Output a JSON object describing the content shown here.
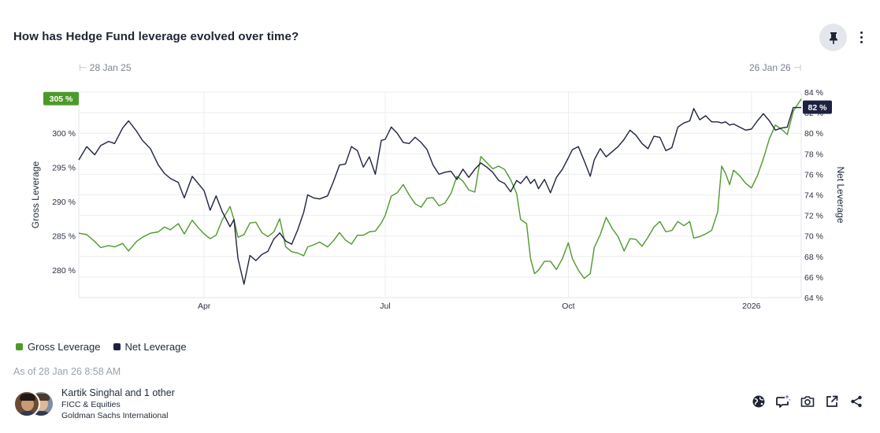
{
  "header": {
    "title": "How has Hedge Fund leverage evolved over time?",
    "pin_icon": "pin-icon",
    "more_icon": "more-vertical-icon"
  },
  "range": {
    "start": "28 Jan 25",
    "end": "26 Jan 26"
  },
  "legend": [
    {
      "label": "Gross Leverage",
      "color": "#4d9a2a"
    },
    {
      "label": "Net Leverage",
      "color": "#1e2240"
    }
  ],
  "as_of": "As of 28 Jan 26 8:58 AM",
  "authors": {
    "name": "Kartik Singhal and 1 other",
    "desk": "FICC & Equities",
    "entity": "Goldman Sachs International"
  },
  "footer_icons": [
    "globe-icon",
    "ai-comment-icon",
    "camera-icon",
    "open-external-icon",
    "share-icon"
  ],
  "chart_data": {
    "type": "line",
    "title": "How has Hedge Fund leverage evolved over time?",
    "x_range": [
      "2025-01-28",
      "2026-01-26"
    ],
    "x_ticks": [
      {
        "date": "2025-04-01",
        "label": "Apr"
      },
      {
        "date": "2025-07-01",
        "label": "Jul"
      },
      {
        "date": "2025-10-01",
        "label": "Oct"
      },
      {
        "date": "2026-01-01",
        "label": "2026"
      }
    ],
    "y_left": {
      "label": "Gross Leverage",
      "min": 276,
      "max": 306,
      "ticks": [
        280,
        285,
        290,
        295,
        300
      ],
      "tick_labels": [
        "280 %",
        "285 %",
        "290 %",
        "295 %",
        "300 %"
      ]
    },
    "y_right": {
      "label": "Net Leverage",
      "min": 64,
      "max": 84,
      "ticks": [
        64,
        66,
        68,
        70,
        72,
        74,
        76,
        78,
        80,
        82,
        84
      ],
      "tick_labels": [
        "64 %",
        "66 %",
        "68 %",
        "70 %",
        "72 %",
        "74 %",
        "76 %",
        "78 %",
        "80 %",
        "82 %",
        "84 %"
      ]
    },
    "grid": true,
    "legend_position": "bottom-left",
    "last_value_badges": {
      "gross": "305 %",
      "net": "82 %"
    },
    "series": [
      {
        "name": "Gross Leverage",
        "axis": "left",
        "color": "#4d9a2a",
        "points": [
          [
            "2025-01-28",
            285.4
          ],
          [
            "2025-02-01",
            285.2
          ],
          [
            "2025-02-05",
            284.2
          ],
          [
            "2025-02-08",
            283.3
          ],
          [
            "2025-02-12",
            283.6
          ],
          [
            "2025-02-15",
            283.4
          ],
          [
            "2025-02-19",
            283.9
          ],
          [
            "2025-02-22",
            282.8
          ],
          [
            "2025-02-26",
            284.2
          ],
          [
            "2025-03-01",
            284.8
          ],
          [
            "2025-03-05",
            285.4
          ],
          [
            "2025-03-09",
            285.6
          ],
          [
            "2025-03-12",
            286.3
          ],
          [
            "2025-03-15",
            285.9
          ],
          [
            "2025-03-19",
            286.8
          ],
          [
            "2025-03-22",
            285.3
          ],
          [
            "2025-03-26",
            287.3
          ],
          [
            "2025-03-29",
            286.2
          ],
          [
            "2025-04-01",
            285.3
          ],
          [
            "2025-04-04",
            284.6
          ],
          [
            "2025-04-07",
            285.1
          ],
          [
            "2025-04-10",
            287.3
          ],
          [
            "2025-04-14",
            289.3
          ],
          [
            "2025-04-16",
            287.4
          ],
          [
            "2025-04-18",
            284.8
          ],
          [
            "2025-04-21",
            285.2
          ],
          [
            "2025-04-24",
            286.9
          ],
          [
            "2025-04-27",
            287.0
          ],
          [
            "2025-04-30",
            285.5
          ],
          [
            "2025-05-03",
            284.9
          ],
          [
            "2025-05-06",
            285.6
          ],
          [
            "2025-05-09",
            287.5
          ],
          [
            "2025-05-12",
            283.4
          ],
          [
            "2025-05-15",
            282.7
          ],
          [
            "2025-05-18",
            282.5
          ],
          [
            "2025-05-21",
            282.1
          ],
          [
            "2025-05-23",
            283.4
          ],
          [
            "2025-05-26",
            283.7
          ],
          [
            "2025-05-29",
            284.1
          ],
          [
            "2025-06-02",
            283.4
          ],
          [
            "2025-06-05",
            284.3
          ],
          [
            "2025-06-08",
            285.5
          ],
          [
            "2025-06-11",
            284.4
          ],
          [
            "2025-06-14",
            283.8
          ],
          [
            "2025-06-17",
            285.1
          ],
          [
            "2025-06-20",
            285.1
          ],
          [
            "2025-06-23",
            285.6
          ],
          [
            "2025-06-26",
            285.7
          ],
          [
            "2025-06-29",
            286.9
          ],
          [
            "2025-07-01",
            288.0
          ],
          [
            "2025-07-04",
            290.8
          ],
          [
            "2025-07-07",
            291.3
          ],
          [
            "2025-07-10",
            292.5
          ],
          [
            "2025-07-13",
            291.0
          ],
          [
            "2025-07-16",
            289.7
          ],
          [
            "2025-07-19",
            289.2
          ],
          [
            "2025-07-22",
            290.5
          ],
          [
            "2025-07-25",
            290.6
          ],
          [
            "2025-07-28",
            289.4
          ],
          [
            "2025-07-31",
            289.8
          ],
          [
            "2025-08-03",
            291.2
          ],
          [
            "2025-08-06",
            293.7
          ],
          [
            "2025-08-09",
            293.0
          ],
          [
            "2025-08-12",
            291.7
          ],
          [
            "2025-08-15",
            291.4
          ],
          [
            "2025-08-18",
            296.6
          ],
          [
            "2025-08-21",
            295.7
          ],
          [
            "2025-08-24",
            294.8
          ],
          [
            "2025-08-27",
            295.2
          ],
          [
            "2025-08-30",
            294.7
          ],
          [
            "2025-09-02",
            293.2
          ],
          [
            "2025-09-05",
            291.2
          ],
          [
            "2025-09-07",
            287.4
          ],
          [
            "2025-09-10",
            286.8
          ],
          [
            "2025-09-12",
            281.7
          ],
          [
            "2025-09-14",
            279.5
          ],
          [
            "2025-09-16",
            280.0
          ],
          [
            "2025-09-19",
            281.3
          ],
          [
            "2025-09-22",
            281.3
          ],
          [
            "2025-09-25",
            280.1
          ],
          [
            "2025-09-28",
            281.7
          ],
          [
            "2025-10-01",
            284.0
          ],
          [
            "2025-10-03",
            281.7
          ],
          [
            "2025-10-06",
            280.0
          ],
          [
            "2025-10-09",
            278.8
          ],
          [
            "2025-10-12",
            279.5
          ],
          [
            "2025-10-14",
            283.3
          ],
          [
            "2025-10-17",
            285.2
          ],
          [
            "2025-10-20",
            287.7
          ],
          [
            "2025-10-23",
            286.1
          ],
          [
            "2025-10-26",
            284.9
          ],
          [
            "2025-10-29",
            282.8
          ],
          [
            "2025-11-01",
            284.6
          ],
          [
            "2025-11-04",
            284.5
          ],
          [
            "2025-11-07",
            283.5
          ],
          [
            "2025-11-10",
            284.8
          ],
          [
            "2025-11-13",
            286.3
          ],
          [
            "2025-11-16",
            287.1
          ],
          [
            "2025-11-19",
            285.6
          ],
          [
            "2025-11-22",
            285.8
          ],
          [
            "2025-11-25",
            287.1
          ],
          [
            "2025-11-28",
            286.5
          ],
          [
            "2025-12-01",
            287.1
          ],
          [
            "2025-12-03",
            284.7
          ],
          [
            "2025-12-06",
            284.9
          ],
          [
            "2025-12-09",
            285.3
          ],
          [
            "2025-12-12",
            285.8
          ],
          [
            "2025-12-15",
            288.5
          ],
          [
            "2025-12-17",
            295.2
          ],
          [
            "2025-12-19",
            294.1
          ],
          [
            "2025-12-21",
            292.5
          ],
          [
            "2025-12-23",
            294.6
          ],
          [
            "2025-12-26",
            293.8
          ],
          [
            "2025-12-29",
            292.7
          ],
          [
            "2026-01-01",
            292.0
          ],
          [
            "2026-01-04",
            293.8
          ],
          [
            "2026-01-07",
            296.3
          ],
          [
            "2026-01-10",
            299.2
          ],
          [
            "2026-01-13",
            301.2
          ],
          [
            "2026-01-16",
            300.6
          ],
          [
            "2026-01-19",
            299.8
          ],
          [
            "2026-01-22",
            303.2
          ],
          [
            "2026-01-26",
            305.0
          ]
        ]
      },
      {
        "name": "Net Leverage",
        "axis": "right",
        "color": "#1e2240",
        "points": [
          [
            "2025-01-28",
            77.4
          ],
          [
            "2025-02-01",
            78.7
          ],
          [
            "2025-02-05",
            77.9
          ],
          [
            "2025-02-08",
            78.8
          ],
          [
            "2025-02-12",
            79.2
          ],
          [
            "2025-02-15",
            79.0
          ],
          [
            "2025-02-19",
            80.5
          ],
          [
            "2025-02-22",
            81.2
          ],
          [
            "2025-02-26",
            80.2
          ],
          [
            "2025-03-01",
            79.3
          ],
          [
            "2025-03-05",
            78.5
          ],
          [
            "2025-03-09",
            76.9
          ],
          [
            "2025-03-12",
            76.1
          ],
          [
            "2025-03-15",
            75.6
          ],
          [
            "2025-03-19",
            75.2
          ],
          [
            "2025-03-22",
            73.7
          ],
          [
            "2025-03-26",
            75.8
          ],
          [
            "2025-03-29",
            75.1
          ],
          [
            "2025-04-01",
            74.4
          ],
          [
            "2025-04-04",
            72.5
          ],
          [
            "2025-04-07",
            73.9
          ],
          [
            "2025-04-10",
            72.4
          ],
          [
            "2025-04-14",
            70.9
          ],
          [
            "2025-04-16",
            71.6
          ],
          [
            "2025-04-18",
            67.8
          ],
          [
            "2025-04-21",
            65.3
          ],
          [
            "2025-04-24",
            68.1
          ],
          [
            "2025-04-27",
            67.6
          ],
          [
            "2025-04-30",
            68.2
          ],
          [
            "2025-05-03",
            68.5
          ],
          [
            "2025-05-06",
            69.7
          ],
          [
            "2025-05-09",
            70.3
          ],
          [
            "2025-05-12",
            69.5
          ],
          [
            "2025-05-15",
            69.2
          ],
          [
            "2025-05-18",
            70.6
          ],
          [
            "2025-05-21",
            72.3
          ],
          [
            "2025-05-23",
            74.0
          ],
          [
            "2025-05-26",
            73.7
          ],
          [
            "2025-05-29",
            73.6
          ],
          [
            "2025-06-02",
            73.9
          ],
          [
            "2025-06-05",
            75.3
          ],
          [
            "2025-06-08",
            76.9
          ],
          [
            "2025-06-11",
            77.0
          ],
          [
            "2025-06-14",
            78.7
          ],
          [
            "2025-06-17",
            78.3
          ],
          [
            "2025-06-20",
            76.7
          ],
          [
            "2025-06-23",
            77.7
          ],
          [
            "2025-06-26",
            76.0
          ],
          [
            "2025-06-29",
            79.3
          ],
          [
            "2025-07-01",
            79.4
          ],
          [
            "2025-07-04",
            80.6
          ],
          [
            "2025-07-07",
            80.0
          ],
          [
            "2025-07-10",
            79.1
          ],
          [
            "2025-07-13",
            79.0
          ],
          [
            "2025-07-16",
            79.6
          ],
          [
            "2025-07-19",
            79.1
          ],
          [
            "2025-07-22",
            78.4
          ],
          [
            "2025-07-25",
            76.9
          ],
          [
            "2025-07-28",
            76.0
          ],
          [
            "2025-07-31",
            76.2
          ],
          [
            "2025-08-03",
            76.3
          ],
          [
            "2025-08-06",
            75.5
          ],
          [
            "2025-08-09",
            76.5
          ],
          [
            "2025-08-12",
            75.7
          ],
          [
            "2025-08-15",
            76.5
          ],
          [
            "2025-08-18",
            77.1
          ],
          [
            "2025-08-21",
            76.7
          ],
          [
            "2025-08-24",
            76.2
          ],
          [
            "2025-08-27",
            75.4
          ],
          [
            "2025-08-30",
            75.1
          ],
          [
            "2025-09-02",
            74.3
          ],
          [
            "2025-09-05",
            75.4
          ],
          [
            "2025-09-07",
            75.1
          ],
          [
            "2025-09-10",
            75.8
          ],
          [
            "2025-09-12",
            75.1
          ],
          [
            "2025-09-14",
            75.5
          ],
          [
            "2025-09-16",
            74.6
          ],
          [
            "2025-09-19",
            75.5
          ],
          [
            "2025-09-22",
            74.2
          ],
          [
            "2025-09-25",
            75.7
          ],
          [
            "2025-09-28",
            76.5
          ],
          [
            "2025-10-01",
            77.6
          ],
          [
            "2025-10-03",
            78.4
          ],
          [
            "2025-10-06",
            78.7
          ],
          [
            "2025-10-09",
            77.3
          ],
          [
            "2025-10-12",
            75.8
          ],
          [
            "2025-10-14",
            77.4
          ],
          [
            "2025-10-17",
            78.5
          ],
          [
            "2025-10-20",
            77.7
          ],
          [
            "2025-10-23",
            78.2
          ],
          [
            "2025-10-26",
            78.7
          ],
          [
            "2025-10-29",
            79.4
          ],
          [
            "2025-11-01",
            80.3
          ],
          [
            "2025-11-04",
            79.8
          ],
          [
            "2025-11-07",
            79.0
          ],
          [
            "2025-11-10",
            78.5
          ],
          [
            "2025-11-13",
            79.7
          ],
          [
            "2025-11-16",
            79.6
          ],
          [
            "2025-11-19",
            78.3
          ],
          [
            "2025-11-22",
            78.6
          ],
          [
            "2025-11-25",
            80.6
          ],
          [
            "2025-11-28",
            81.0
          ],
          [
            "2025-12-01",
            81.2
          ],
          [
            "2025-12-03",
            82.4
          ],
          [
            "2025-12-06",
            81.3
          ],
          [
            "2025-12-09",
            81.7
          ],
          [
            "2025-12-12",
            81.1
          ],
          [
            "2025-12-15",
            81.1
          ],
          [
            "2025-12-17",
            81.0
          ],
          [
            "2025-12-19",
            81.1
          ],
          [
            "2025-12-21",
            80.8
          ],
          [
            "2025-12-23",
            80.9
          ],
          [
            "2025-12-26",
            80.6
          ],
          [
            "2025-12-29",
            80.3
          ],
          [
            "2026-01-01",
            80.4
          ],
          [
            "2026-01-04",
            81.2
          ],
          [
            "2026-01-07",
            81.9
          ],
          [
            "2026-01-10",
            81.2
          ],
          [
            "2026-01-13",
            80.3
          ],
          [
            "2026-01-16",
            80.5
          ],
          [
            "2026-01-19",
            80.6
          ],
          [
            "2026-01-22",
            82.5
          ],
          [
            "2026-01-26",
            82.5
          ]
        ]
      }
    ]
  }
}
